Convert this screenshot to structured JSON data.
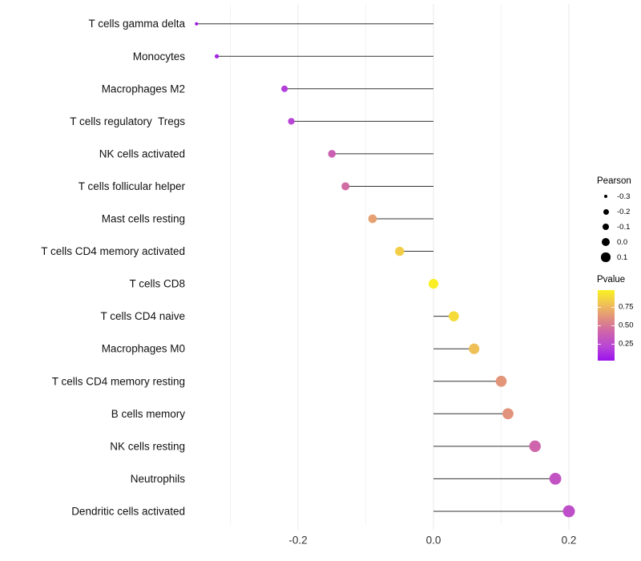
{
  "chart_data": {
    "type": "lollipop",
    "orientation": "horizontal",
    "title": "",
    "xlabel": "",
    "ylabel": "",
    "baseline": 0.0,
    "x_axis": {
      "tick_labels": [
        "-0.2",
        "0.0",
        "0.2"
      ],
      "tick_values": [
        -0.2,
        0.0,
        0.2
      ],
      "range": [
        -0.3775,
        0.2275
      ],
      "gridlines_major": [
        -0.2,
        0.0,
        0.2
      ],
      "gridlines_minor": [
        -0.3,
        -0.1,
        0.1
      ]
    },
    "size_encoding": "Pearson",
    "color_encoding": "Pvalue",
    "points": [
      {
        "category": "T cells gamma delta",
        "pearson": -0.35,
        "pvalue": 0.04
      },
      {
        "category": "Monocytes",
        "pearson": -0.32,
        "pvalue": 0.08
      },
      {
        "category": "Macrophages M2",
        "pearson": -0.22,
        "pvalue": 0.18
      },
      {
        "category": "T cells regulatory  Tregs",
        "pearson": -0.21,
        "pvalue": 0.21
      },
      {
        "category": "NK cells activated",
        "pearson": -0.15,
        "pvalue": 0.38
      },
      {
        "category": "T cells follicular helper",
        "pearson": -0.13,
        "pvalue": 0.44
      },
      {
        "category": "Mast cells resting",
        "pearson": -0.09,
        "pvalue": 0.66
      },
      {
        "category": "T cells CD4 memory activated",
        "pearson": -0.05,
        "pvalue": 0.84
      },
      {
        "category": "T cells CD8",
        "pearson": 0.0,
        "pvalue": 0.97
      },
      {
        "category": "T cells CD4 naive",
        "pearson": 0.03,
        "pvalue": 0.89
      },
      {
        "category": "Macrophages M0",
        "pearson": 0.06,
        "pvalue": 0.78
      },
      {
        "category": "T cells CD4 memory resting",
        "pearson": 0.1,
        "pvalue": 0.62
      },
      {
        "category": "B cells memory",
        "pearson": 0.11,
        "pvalue": 0.61
      },
      {
        "category": "NK cells resting",
        "pearson": 0.15,
        "pvalue": 0.41
      },
      {
        "category": "Neutrophils",
        "pearson": 0.18,
        "pvalue": 0.3
      },
      {
        "category": "Dendritic cells activated",
        "pearson": 0.2,
        "pvalue": 0.27
      }
    ]
  },
  "legend": {
    "size_legend": {
      "title": "Pearson",
      "items": [
        {
          "label": "-0.3",
          "value": -0.3
        },
        {
          "label": "-0.2",
          "value": -0.2
        },
        {
          "label": "-0.1",
          "value": -0.1
        },
        {
          "label": "0.0",
          "value": 0.0
        },
        {
          "label": "0.1",
          "value": 0.1
        }
      ]
    },
    "color_legend": {
      "title": "Pvalue",
      "ticks": [
        {
          "label": "0.75",
          "value": 0.75
        },
        {
          "label": "0.50",
          "value": 0.5
        },
        {
          "label": "0.25",
          "value": 0.25
        }
      ],
      "domain": [
        0.02,
        0.98
      ],
      "gradient_stops": [
        {
          "t": 0.0,
          "color": "#9C13EC"
        },
        {
          "t": 0.2,
          "color": "#B846D6"
        },
        {
          "t": 0.4,
          "color": "#CD63AC"
        },
        {
          "t": 0.6,
          "color": "#E18F7F"
        },
        {
          "t": 0.8,
          "color": "#F0C156"
        },
        {
          "t": 1.0,
          "color": "#F9F121"
        }
      ]
    }
  },
  "style": {
    "background": "#ffffff",
    "stick_color": "#333333",
    "grid_major_color": "#e8e8e8",
    "grid_minor_color": "#f3f3f3",
    "axis_text_color": "#333333",
    "category_text_color": "#111111",
    "legend_dot_color": "#000000"
  }
}
